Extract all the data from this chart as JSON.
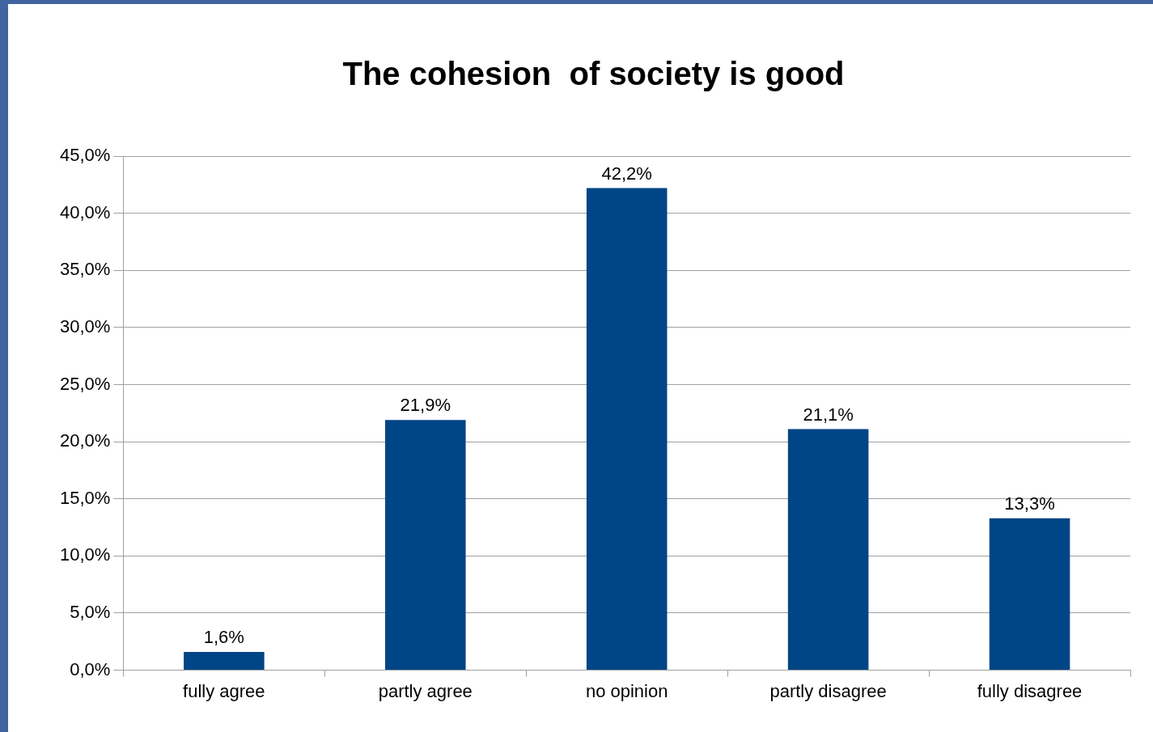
{
  "chart_data": {
    "type": "bar",
    "title": "The cohesion  of society is good",
    "categories": [
      "fully agree",
      "partly agree",
      "no opinion",
      "partly disagree",
      "fully disagree"
    ],
    "values": [
      1.6,
      21.9,
      42.2,
      21.1,
      13.3
    ],
    "value_labels": [
      "1,6%",
      "21,9%",
      "42,2%",
      "21,1%",
      "13,3%"
    ],
    "color": "#004586",
    "ylim": [
      0,
      45
    ],
    "yticks": [
      {
        "value": 0,
        "label": "0,0%"
      },
      {
        "value": 5,
        "label": "5,0%"
      },
      {
        "value": 10,
        "label": "10,0%"
      },
      {
        "value": 15,
        "label": "15,0%"
      },
      {
        "value": 20,
        "label": "20,0%"
      },
      {
        "value": 25,
        "label": "25,0%"
      },
      {
        "value": 30,
        "label": "30,0%"
      },
      {
        "value": 35,
        "label": "35,0%"
      },
      {
        "value": 40,
        "label": "40,0%"
      },
      {
        "value": 45,
        "label": "45,0%"
      }
    ],
    "grid": "y",
    "legend": false
  }
}
